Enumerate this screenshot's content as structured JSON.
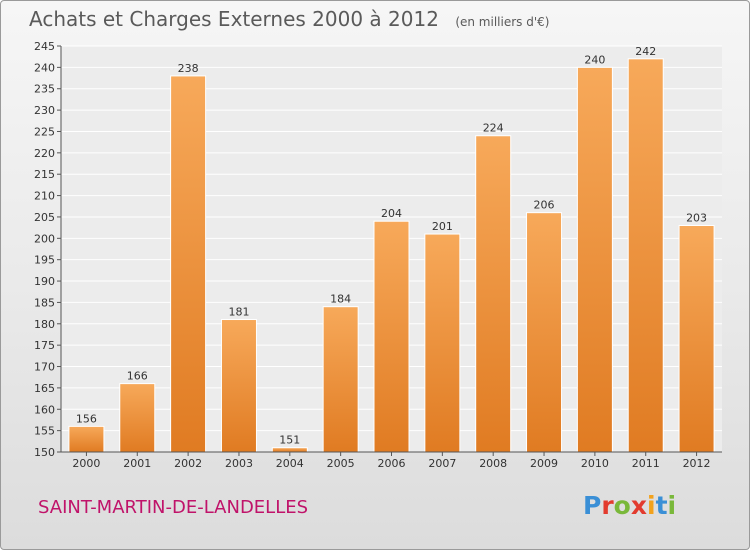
{
  "header": {
    "title": "Achats et Charges Externes 2000 à 2012",
    "unit": "(en milliers d'€)"
  },
  "footer": {
    "commune": "SAINT-MARTIN-DE-LANDELLES",
    "logo": [
      "P",
      "r",
      "o",
      "x",
      "i",
      "t",
      "i"
    ]
  },
  "colors": {
    "bar_top": "#f7a95a",
    "bar_bottom": "#e07b22",
    "commune": "#c0136a",
    "logo": [
      "#3a8fd6",
      "#e23b2e",
      "#79b83a",
      "#e23b2e",
      "#f2a21c",
      "#3a8fd6",
      "#79b83a"
    ]
  },
  "chart_data": {
    "type": "bar",
    "title": "Achats et Charges Externes 2000 à 2012",
    "subtitle": "(en milliers d'€)",
    "xlabel": "",
    "ylabel": "",
    "categories": [
      "2000",
      "2001",
      "2002",
      "2003",
      "2004",
      "2005",
      "2006",
      "2007",
      "2008",
      "2009",
      "2010",
      "2011",
      "2012"
    ],
    "values": [
      156,
      166,
      238,
      181,
      151,
      184,
      204,
      201,
      224,
      206,
      240,
      242,
      203
    ],
    "ylim": [
      150,
      245
    ],
    "ytick_step": 5,
    "grid": true,
    "data_labels": true
  }
}
